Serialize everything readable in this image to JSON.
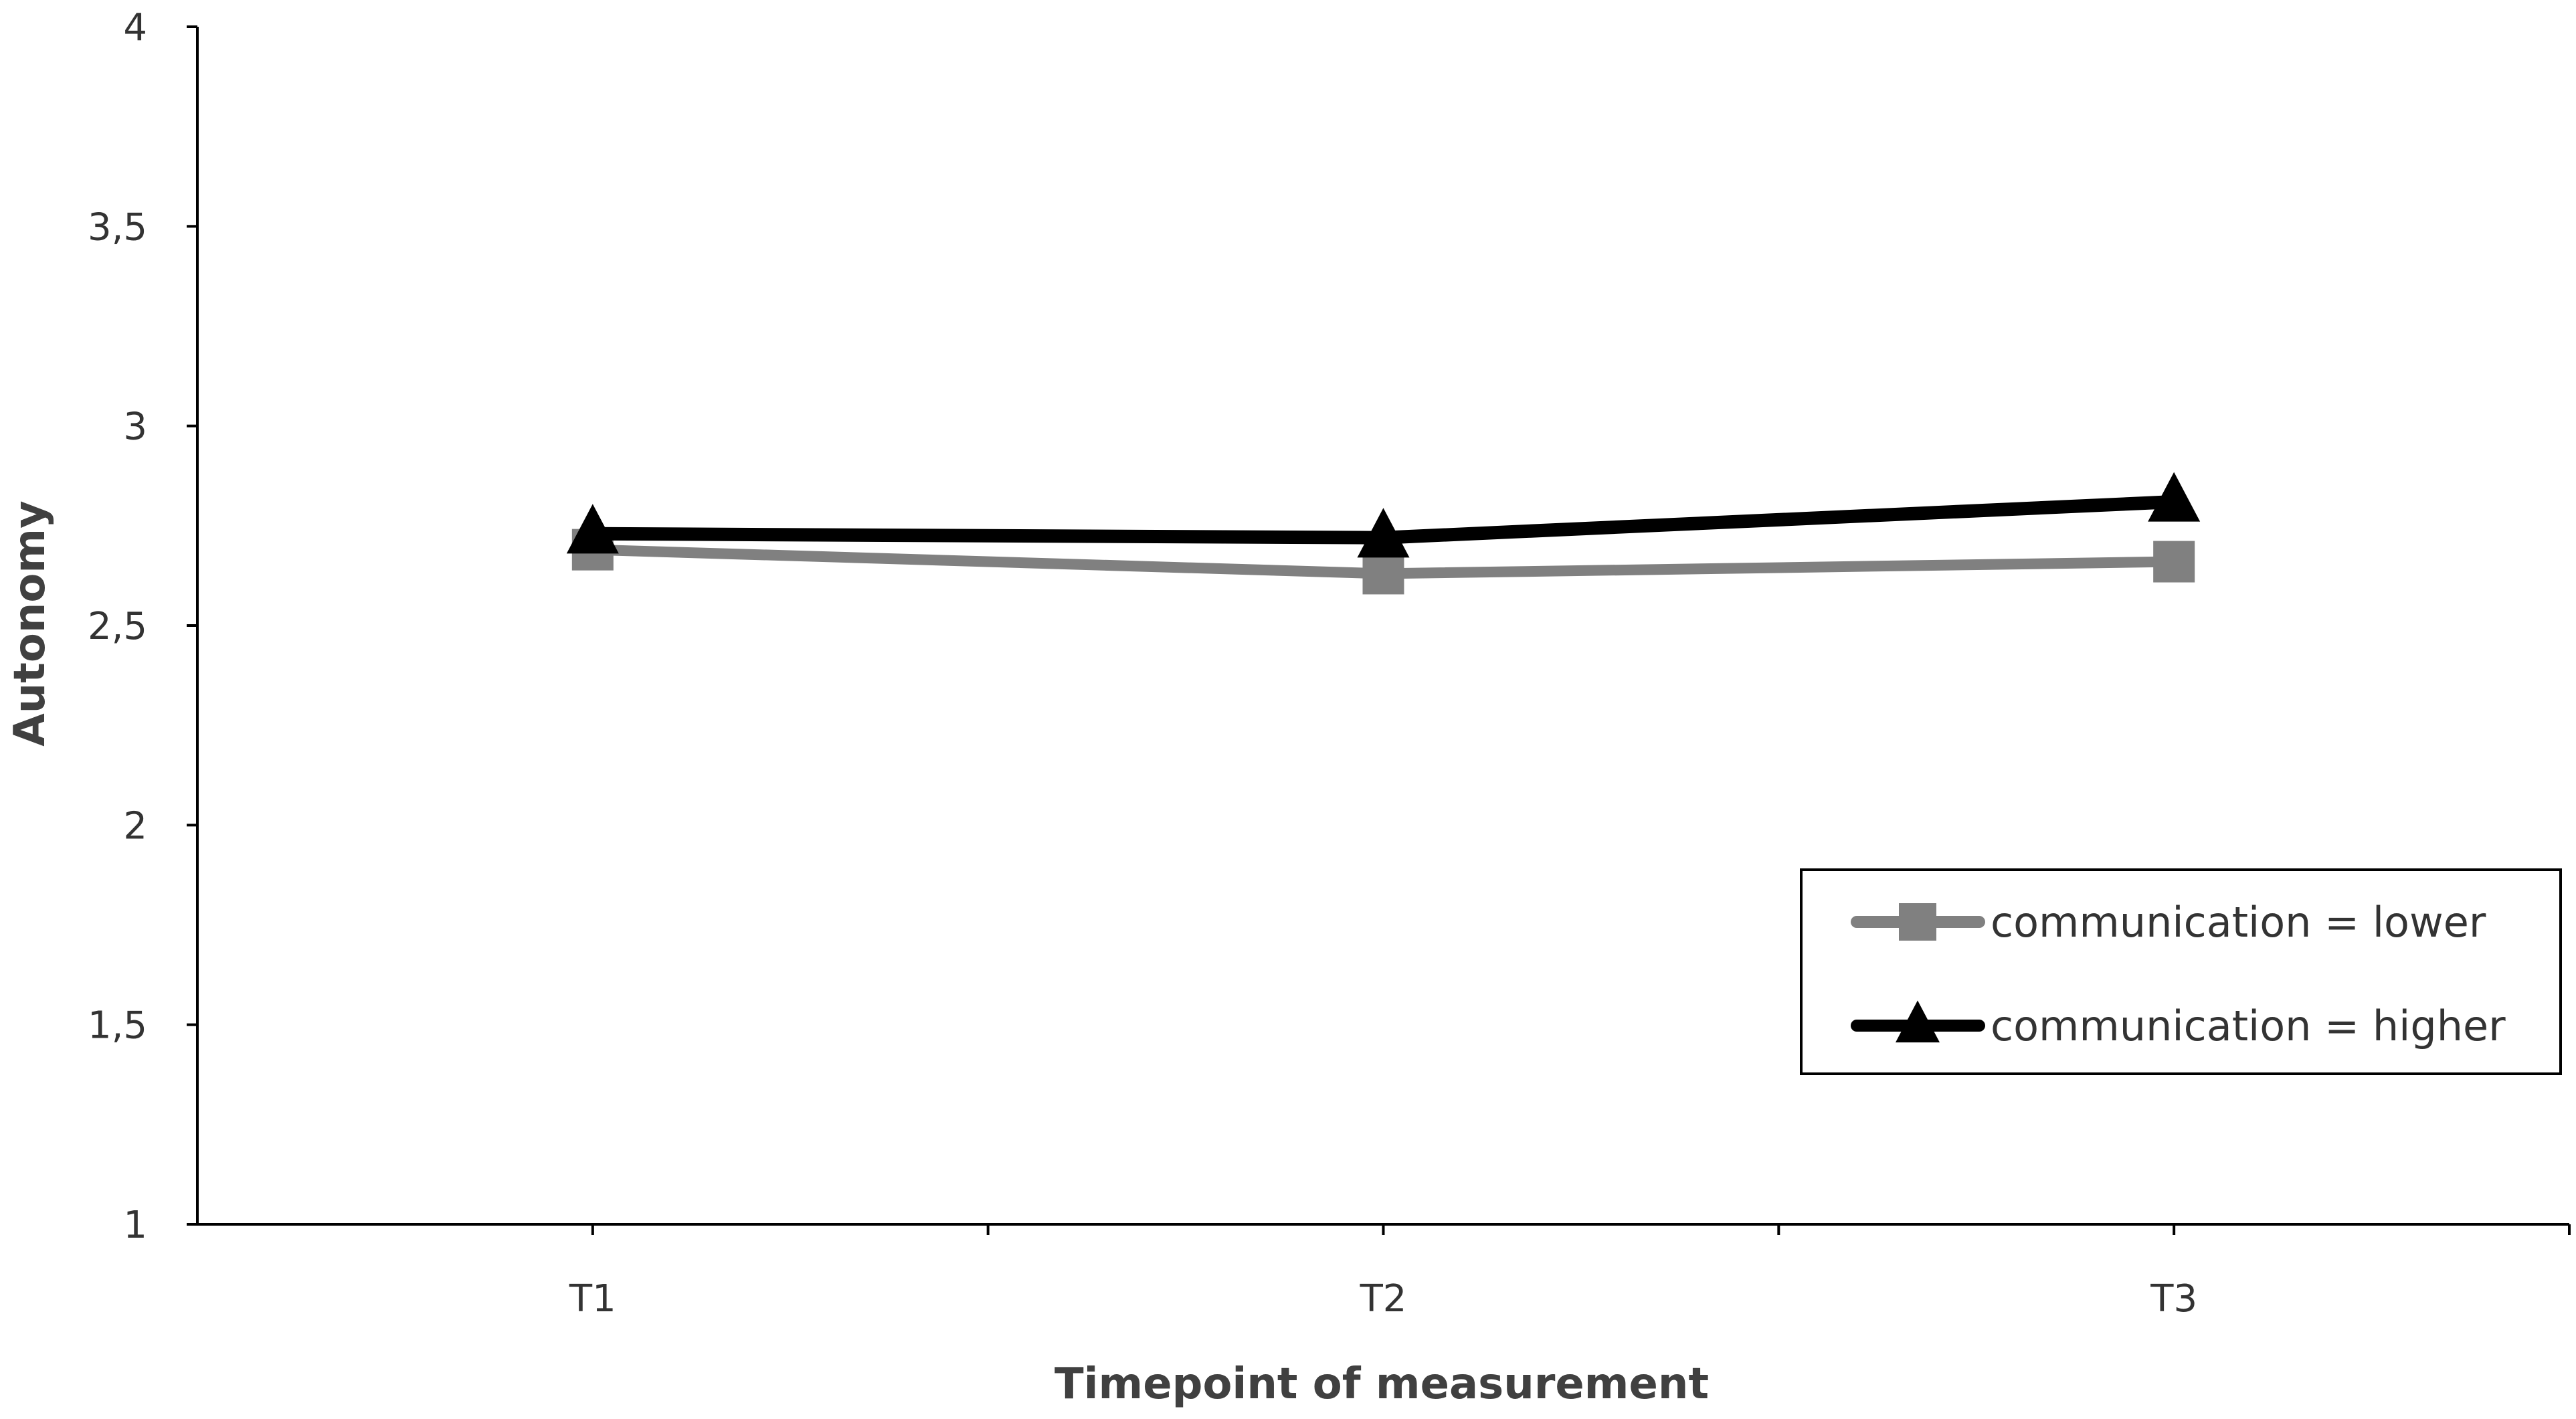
{
  "chart_data": {
    "type": "line",
    "title": "",
    "xlabel": "Timepoint of measurement",
    "ylabel": "Autonomy",
    "categories": [
      "T1",
      "T2",
      "T3"
    ],
    "ylim": [
      1,
      4
    ],
    "yticks": [
      "1",
      "1,5",
      "2",
      "2,5",
      "3",
      "3,5",
      "4"
    ],
    "ytick_values": [
      1,
      1.5,
      2,
      2.5,
      3,
      3.5,
      4
    ],
    "grid": false,
    "legend_position": "right",
    "series": [
      {
        "name": "communication = lower",
        "values": [
          2.69,
          2.63,
          2.66
        ],
        "color": "#808080",
        "marker": "square"
      },
      {
        "name": "communication = higher",
        "values": [
          2.73,
          2.72,
          2.81
        ],
        "color": "#000000",
        "marker": "triangle"
      }
    ]
  }
}
